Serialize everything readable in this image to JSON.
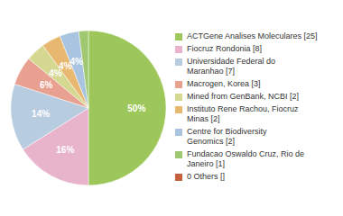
{
  "chart_data": {
    "type": "pie",
    "categories": [
      "ACTGene Analises Moleculares [25]",
      "Fiocruz Rondonia [8]",
      "Universidade Federal do\nMaranhao [7]",
      "Macrogen, Korea [3]",
      "Mined from GenBank, NCBI [2]",
      "Instituto Rene Rachou, Fiocruz\nMinas [2]",
      "Centre for Biodiversity\nGenomics [2]",
      "Fundacao Oswaldo Cruz, Rio de\nJaneiro [1]",
      "0 Others []"
    ],
    "values": [
      50,
      16,
      14,
      6,
      4,
      4,
      4,
      2,
      0
    ],
    "value_labels": [
      "50%",
      "16%",
      "14%",
      "6%",
      "4%",
      "4%",
      "4%",
      null,
      null
    ],
    "colors": [
      "#9dc75a",
      "#e8b4cc",
      "#b8cce0",
      "#e8a090",
      "#d4d890",
      "#e8b870",
      "#a8c4e0",
      "#a0c870",
      "#c86040"
    ],
    "data_labels": true,
    "legend": "right"
  }
}
